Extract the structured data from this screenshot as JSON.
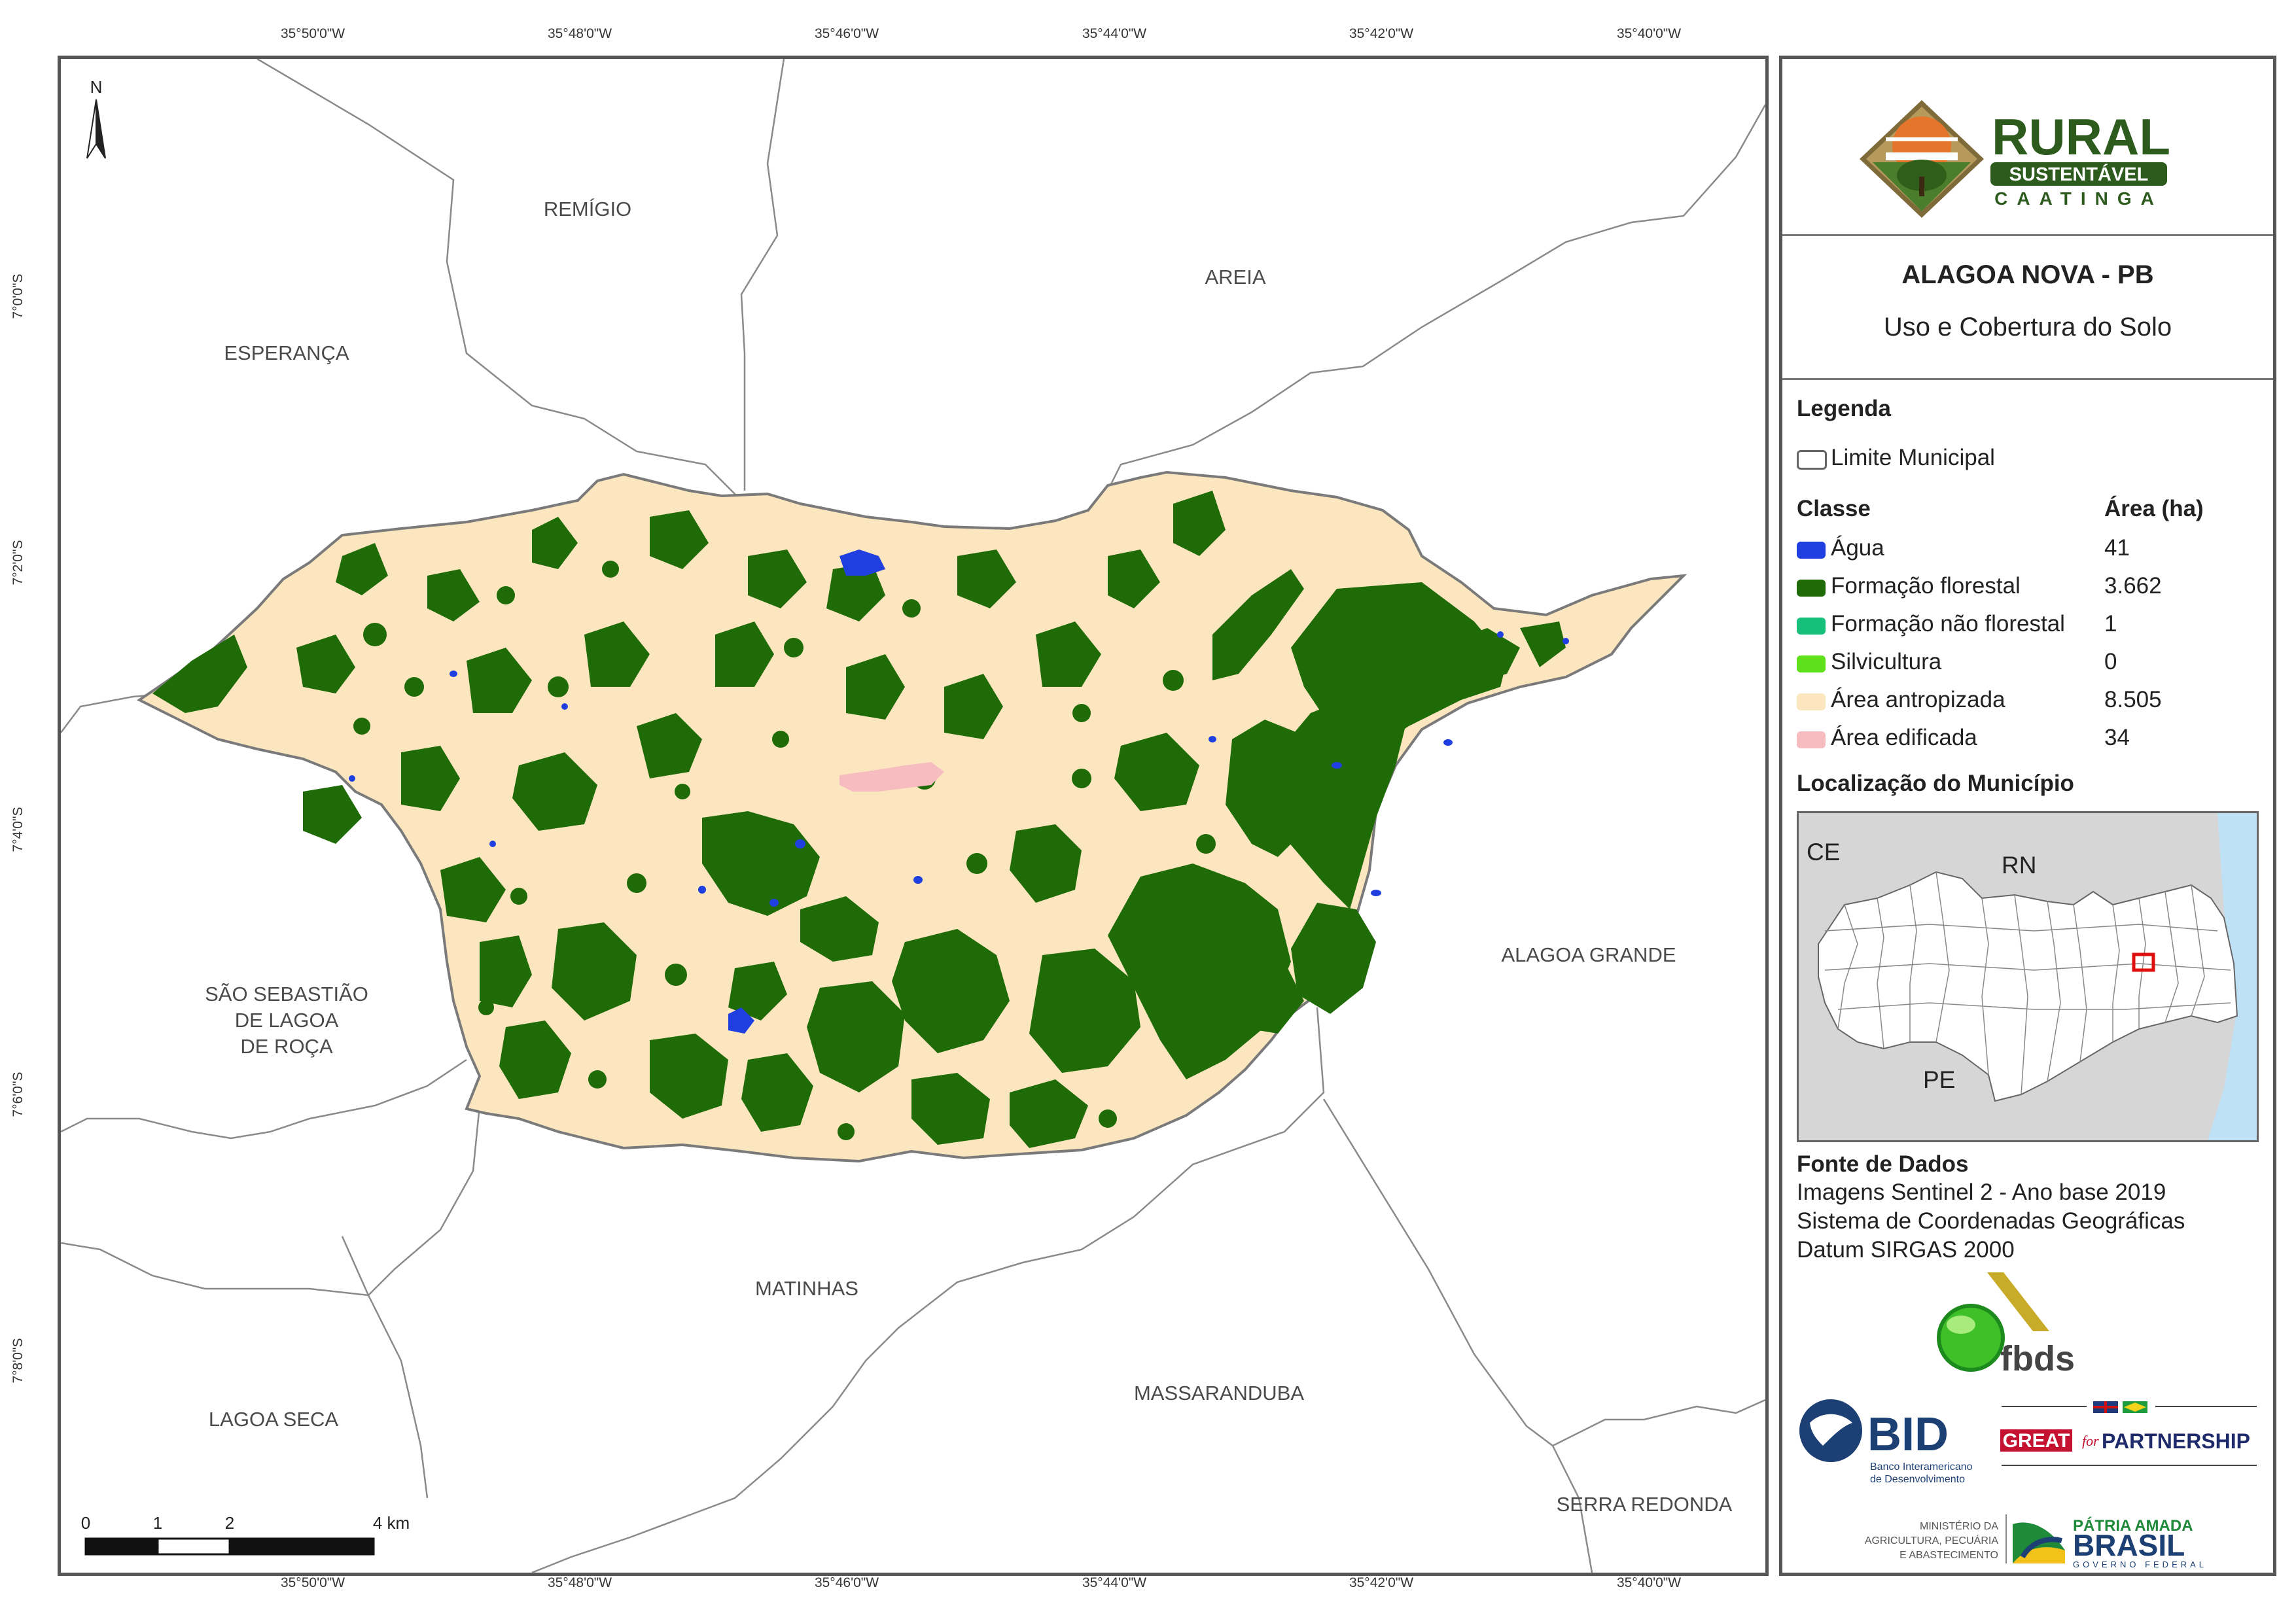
{
  "coordinates": {
    "longitude_ticks": [
      "35°50'0\"W",
      "35°48'0\"W",
      "35°46'0\"W",
      "35°44'0\"W",
      "35°42'0\"W",
      "35°40'0\"W"
    ],
    "latitude_ticks": [
      "7°0'0\"S",
      "7°2'0\"S",
      "7°4'0\"S",
      "7°6'0\"S",
      "7°8'0\"S"
    ]
  },
  "map": {
    "north_arrow": "N",
    "municipalities": {
      "remigio": "REMÍGIO",
      "areia": "AREIA",
      "esperanca": "ESPERANÇA",
      "sao_sebastiao_1": "SÃO SEBASTIÃO",
      "sao_sebastiao_2": "DE LAGOA",
      "sao_sebastiao_3": "DE ROÇA",
      "alagoa_grande": "ALAGOA GRANDE",
      "matinhas": "MATINHAS",
      "massaranduba": "MASSARANDUBA",
      "lagoa_seca": "LAGOA SECA",
      "serra_redonda": "SERRA REDONDA"
    },
    "scale_bar": {
      "labels": [
        "0",
        "1",
        "2",
        "4 km"
      ]
    }
  },
  "panel": {
    "logo": {
      "line1": "RURAL",
      "line2": "SUSTENTÁVEL",
      "line3": "CAATINGA"
    },
    "title": "ALAGOA NOVA - PB",
    "subtitle": "Uso e Cobertura do Solo",
    "legend": {
      "heading": "Legenda",
      "boundary_label": "Limite Municipal",
      "class_header": "Classe",
      "area_header": "Área (ha)",
      "classes": [
        {
          "name": "Água",
          "area": "41",
          "color": "#1f3fe0"
        },
        {
          "name": "Formação florestal",
          "area": "3.662",
          "color": "#1f6b08"
        },
        {
          "name": "Formação não florestal",
          "area": "1",
          "color": "#17c07a"
        },
        {
          "name": "Silvicultura",
          "area": "0",
          "color": "#5ee01a"
        },
        {
          "name": "Área antropizada",
          "area": "8.505",
          "color": "#fbe6bf"
        },
        {
          "name": "Área edificada",
          "area": "34",
          "color": "#f7bcc0"
        }
      ]
    },
    "location": {
      "heading": "Localização do Município",
      "labels": {
        "ce": "CE",
        "rn": "RN",
        "pe": "PE"
      }
    },
    "sources": {
      "heading": "Fonte de Dados",
      "lines": [
        "Imagens Sentinel 2 - Ano base 2019",
        "Sistema de Coordenadas Geográficas",
        "Datum SIRGAS 2000"
      ]
    },
    "logos": {
      "fbds": "fbds",
      "bid": "BID",
      "bid_sub1": "Banco Interamericano",
      "bid_sub2": "de Desenvolvimento",
      "great_1": "GREAT",
      "great_2": "for",
      "great_3": "PARTNERSHIP",
      "ministry_1": "MINISTÉRIO DA",
      "ministry_2": "AGRICULTURA, PECUÁRIA",
      "ministry_3": "E ABASTECIMENTO",
      "brasil_1": "PÁTRIA AMADA",
      "brasil_2": "BRASIL",
      "brasil_3": "GOVERNO FEDERAL"
    }
  }
}
